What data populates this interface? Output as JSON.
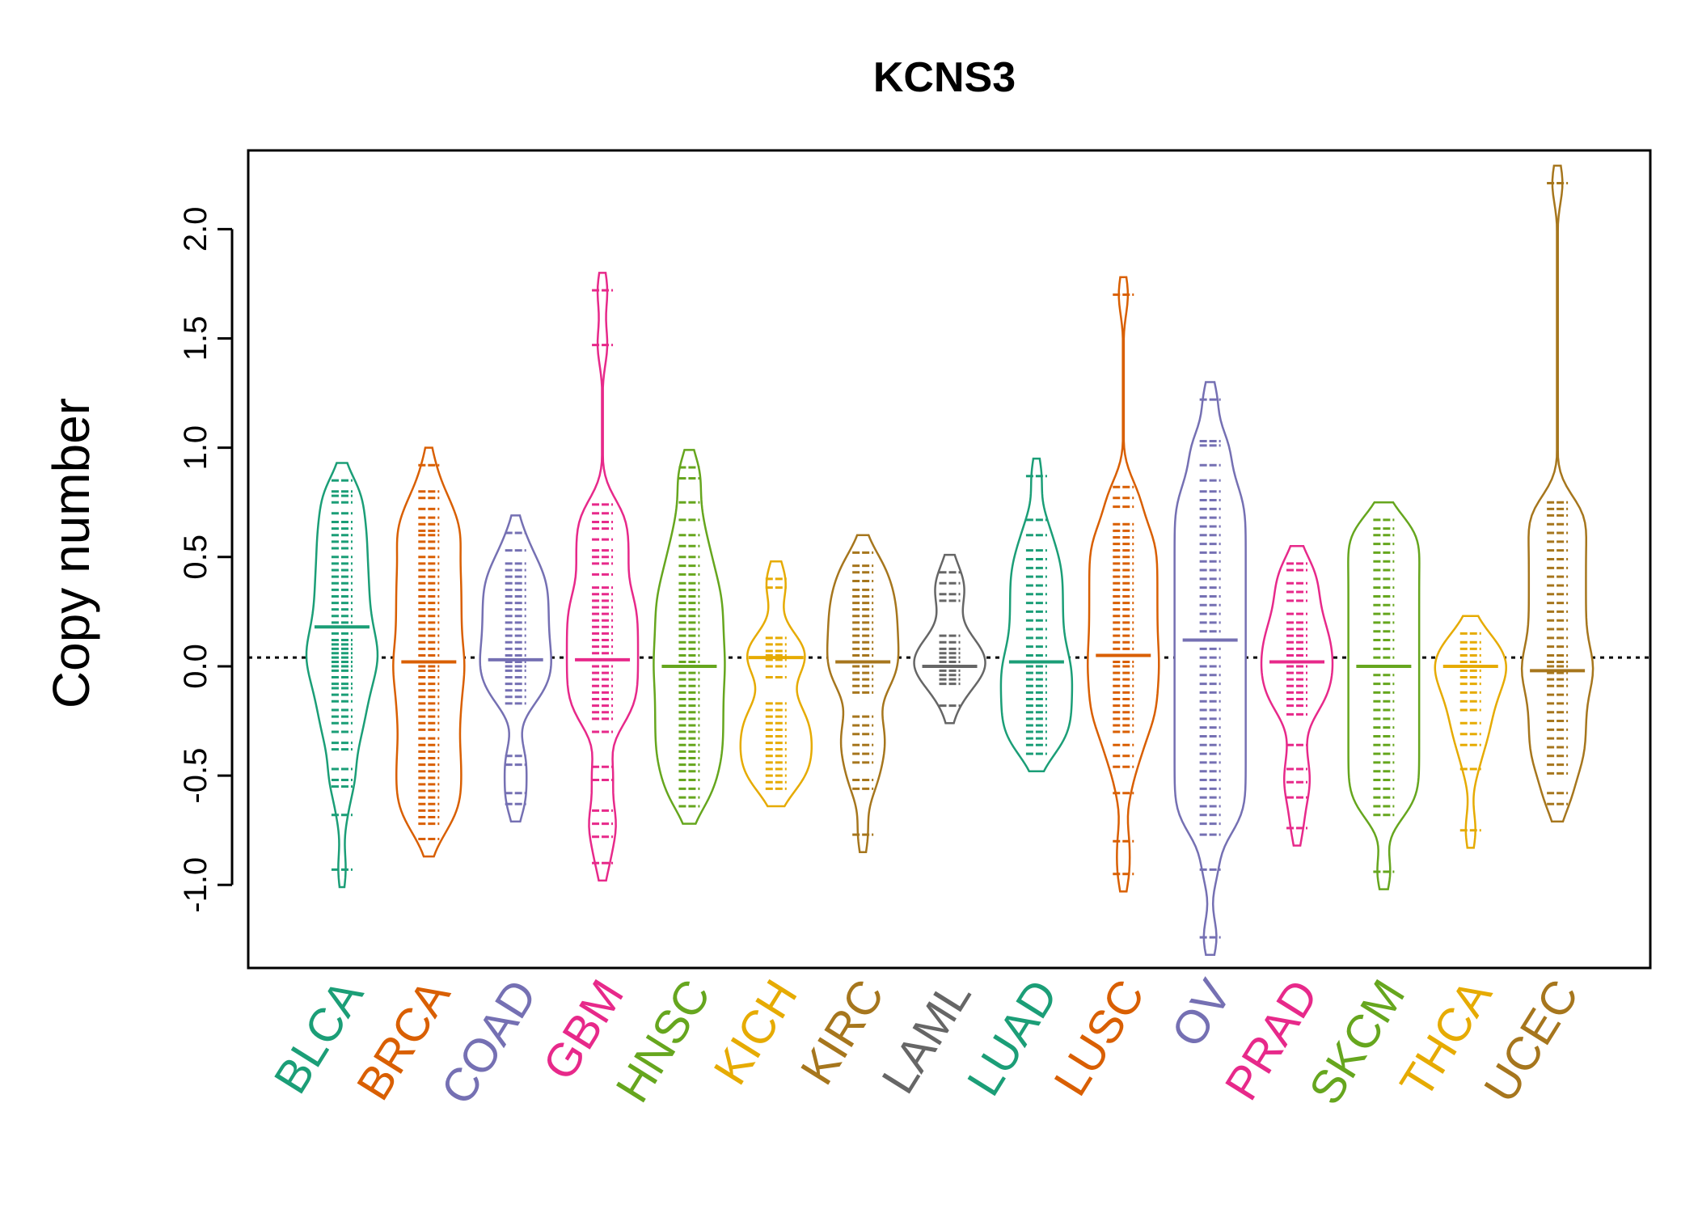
{
  "chart_data": {
    "type": "beanplot",
    "title": "KCNS3",
    "xlabel": "",
    "ylabel": "Copy number",
    "ylim": [
      -1.38,
      2.36
    ],
    "yticks": [
      -1.0,
      -0.5,
      0.0,
      0.5,
      1.0,
      1.5,
      2.0
    ],
    "ytick_labels": [
      "-1.0",
      "-0.5",
      "0.0",
      "0.5",
      "1.0",
      "1.5",
      "2.0"
    ],
    "reference_line": 0.04,
    "categories": [
      "BLCA",
      "BRCA",
      "COAD",
      "GBM",
      "HNSC",
      "KICH",
      "KIRC",
      "LAML",
      "LUAD",
      "LUSC",
      "OV",
      "PRAD",
      "SKCM",
      "THCA",
      "UCEC"
    ],
    "colors": [
      "#1B9E77",
      "#D95F02",
      "#7570B3",
      "#E7298A",
      "#66A61E",
      "#E6AB02",
      "#A6761D",
      "#666666",
      "#1B9E77",
      "#D95F02",
      "#7570B3",
      "#E7298A",
      "#66A61E",
      "#E6AB02",
      "#A6761D"
    ],
    "series": [
      {
        "name": "BLCA",
        "mean": 0.18,
        "min": -0.93,
        "max": 0.85,
        "points": [
          0.85,
          0.8,
          0.78,
          0.75,
          0.7,
          0.66,
          0.63,
          0.6,
          0.57,
          0.54,
          0.5,
          0.47,
          0.44,
          0.41,
          0.38,
          0.35,
          0.32,
          0.29,
          0.26,
          0.23,
          0.2,
          0.18,
          0.15,
          0.12,
          0.1,
          0.08,
          0.06,
          0.04,
          0.02,
          0.0,
          -0.02,
          -0.05,
          -0.08,
          -0.1,
          -0.13,
          -0.16,
          -0.2,
          -0.23,
          -0.26,
          -0.3,
          -0.35,
          -0.38,
          -0.47,
          -0.52,
          -0.55,
          -0.68,
          -0.93
        ]
      },
      {
        "name": "BRCA",
        "mean": 0.02,
        "min": -0.79,
        "max": 0.92,
        "points": [
          0.92,
          0.8,
          0.77,
          0.72,
          0.68,
          0.65,
          0.62,
          0.6,
          0.57,
          0.54,
          0.5,
          0.47,
          0.44,
          0.41,
          0.38,
          0.35,
          0.32,
          0.29,
          0.26,
          0.23,
          0.2,
          0.17,
          0.14,
          0.11,
          0.08,
          0.05,
          0.02,
          0.0,
          -0.02,
          -0.05,
          -0.08,
          -0.11,
          -0.14,
          -0.17,
          -0.2,
          -0.23,
          -0.26,
          -0.29,
          -0.33,
          -0.36,
          -0.39,
          -0.42,
          -0.45,
          -0.48,
          -0.51,
          -0.54,
          -0.57,
          -0.6,
          -0.63,
          -0.66,
          -0.69,
          -0.72,
          -0.79
        ]
      },
      {
        "name": "COAD",
        "mean": 0.03,
        "min": -0.63,
        "max": 0.61,
        "points": [
          0.61,
          0.53,
          0.47,
          0.44,
          0.41,
          0.38,
          0.35,
          0.32,
          0.29,
          0.26,
          0.23,
          0.2,
          0.17,
          0.14,
          0.11,
          0.08,
          0.05,
          0.02,
          0.0,
          -0.02,
          -0.05,
          -0.08,
          -0.11,
          -0.14,
          -0.17,
          -0.41,
          -0.45,
          -0.58,
          -0.63
        ]
      },
      {
        "name": "GBM",
        "mean": 0.03,
        "min": -0.9,
        "max": 1.72,
        "points": [
          1.72,
          1.47,
          0.74,
          0.7,
          0.66,
          0.63,
          0.58,
          0.53,
          0.5,
          0.47,
          0.42,
          0.36,
          0.33,
          0.3,
          0.27,
          0.24,
          0.21,
          0.18,
          0.15,
          0.12,
          0.09,
          0.06,
          0.03,
          0.0,
          -0.03,
          -0.06,
          -0.09,
          -0.12,
          -0.15,
          -0.18,
          -0.21,
          -0.24,
          -0.3,
          -0.46,
          -0.52,
          -0.66,
          -0.72,
          -0.78,
          -0.9
        ]
      },
      {
        "name": "HNSC",
        "mean": 0.0,
        "min": -0.64,
        "max": 0.91,
        "points": [
          0.91,
          0.86,
          0.75,
          0.67,
          0.6,
          0.55,
          0.5,
          0.46,
          0.42,
          0.38,
          0.35,
          0.32,
          0.29,
          0.26,
          0.23,
          0.2,
          0.17,
          0.14,
          0.11,
          0.08,
          0.05,
          0.02,
          0.0,
          -0.03,
          -0.06,
          -0.09,
          -0.12,
          -0.15,
          -0.18,
          -0.21,
          -0.24,
          -0.27,
          -0.3,
          -0.33,
          -0.36,
          -0.39,
          -0.42,
          -0.45,
          -0.48,
          -0.52,
          -0.56,
          -0.6,
          -0.64
        ]
      },
      {
        "name": "KICH",
        "mean": 0.04,
        "min": -0.56,
        "max": 0.4,
        "points": [
          0.4,
          0.36,
          0.13,
          0.1,
          0.07,
          0.05,
          0.03,
          0.0,
          -0.05,
          -0.17,
          -0.2,
          -0.23,
          -0.26,
          -0.29,
          -0.32,
          -0.35,
          -0.38,
          -0.41,
          -0.44,
          -0.47,
          -0.5,
          -0.53,
          -0.56
        ]
      },
      {
        "name": "KIRC",
        "mean": 0.02,
        "min": -0.77,
        "max": 0.52,
        "points": [
          0.52,
          0.46,
          0.43,
          0.39,
          0.35,
          0.32,
          0.29,
          0.26,
          0.23,
          0.2,
          0.17,
          0.14,
          0.11,
          0.08,
          0.05,
          0.02,
          0.0,
          -0.03,
          -0.06,
          -0.09,
          -0.12,
          -0.23,
          -0.27,
          -0.31,
          -0.36,
          -0.4,
          -0.44,
          -0.52,
          -0.56,
          -0.77
        ]
      },
      {
        "name": "LAML",
        "mean": 0.0,
        "min": -0.18,
        "max": 0.43,
        "points": [
          0.43,
          0.38,
          0.33,
          0.3,
          0.14,
          0.11,
          0.08,
          0.06,
          0.04,
          0.02,
          0.0,
          -0.02,
          -0.04,
          -0.06,
          -0.08,
          -0.18
        ]
      },
      {
        "name": "LUAD",
        "mean": 0.02,
        "min": -0.4,
        "max": 0.87,
        "points": [
          0.87,
          0.67,
          0.6,
          0.53,
          0.49,
          0.45,
          0.41,
          0.37,
          0.33,
          0.29,
          0.25,
          0.21,
          0.17,
          0.13,
          0.09,
          0.05,
          0.02,
          0.0,
          -0.03,
          -0.06,
          -0.09,
          -0.12,
          -0.15,
          -0.18,
          -0.21,
          -0.24,
          -0.27,
          -0.3,
          -0.33,
          -0.36,
          -0.4
        ]
      },
      {
        "name": "LUSC",
        "mean": 0.05,
        "min": -0.95,
        "max": 1.7,
        "points": [
          1.7,
          0.82,
          0.77,
          0.73,
          0.65,
          0.62,
          0.59,
          0.56,
          0.53,
          0.5,
          0.47,
          0.44,
          0.41,
          0.38,
          0.35,
          0.32,
          0.29,
          0.26,
          0.23,
          0.2,
          0.17,
          0.14,
          0.11,
          0.08,
          0.05,
          0.02,
          0.0,
          -0.03,
          -0.06,
          -0.09,
          -0.12,
          -0.15,
          -0.18,
          -0.21,
          -0.24,
          -0.27,
          -0.3,
          -0.36,
          -0.41,
          -0.46,
          -0.58,
          -0.8,
          -0.95
        ]
      },
      {
        "name": "OV",
        "mean": 0.12,
        "min": -1.24,
        "max": 1.22,
        "points": [
          1.22,
          1.03,
          1.01,
          0.92,
          0.85,
          0.8,
          0.76,
          0.72,
          0.68,
          0.64,
          0.6,
          0.56,
          0.52,
          0.48,
          0.44,
          0.4,
          0.36,
          0.32,
          0.28,
          0.24,
          0.2,
          0.16,
          0.12,
          0.08,
          0.04,
          0.0,
          -0.04,
          -0.08,
          -0.12,
          -0.16,
          -0.2,
          -0.24,
          -0.28,
          -0.32,
          -0.36,
          -0.4,
          -0.44,
          -0.48,
          -0.52,
          -0.56,
          -0.6,
          -0.64,
          -0.68,
          -0.72,
          -0.77,
          -0.93,
          -1.24
        ]
      },
      {
        "name": "PRAD",
        "mean": 0.02,
        "min": -0.74,
        "max": 0.47,
        "points": [
          0.47,
          0.44,
          0.38,
          0.34,
          0.3,
          0.24,
          0.2,
          0.17,
          0.14,
          0.11,
          0.08,
          0.05,
          0.02,
          0.0,
          -0.03,
          -0.06,
          -0.09,
          -0.12,
          -0.15,
          -0.18,
          -0.22,
          -0.36,
          -0.47,
          -0.53,
          -0.6,
          -0.74
        ]
      },
      {
        "name": "SKCM",
        "mean": 0.0,
        "min": -0.94,
        "max": 0.67,
        "points": [
          0.67,
          0.63,
          0.6,
          0.56,
          0.52,
          0.48,
          0.44,
          0.4,
          0.36,
          0.32,
          0.28,
          0.24,
          0.2,
          0.16,
          0.12,
          0.08,
          0.04,
          0.0,
          -0.04,
          -0.08,
          -0.12,
          -0.16,
          -0.2,
          -0.24,
          -0.28,
          -0.32,
          -0.36,
          -0.4,
          -0.44,
          -0.48,
          -0.52,
          -0.56,
          -0.6,
          -0.64,
          -0.68,
          -0.94
        ]
      },
      {
        "name": "THCA",
        "mean": 0.0,
        "min": -0.75,
        "max": 0.15,
        "points": [
          0.15,
          0.11,
          0.08,
          0.05,
          0.02,
          0.0,
          -0.02,
          -0.05,
          -0.08,
          -0.12,
          -0.16,
          -0.2,
          -0.26,
          -0.31,
          -0.36,
          -0.47,
          -0.75
        ]
      },
      {
        "name": "UCEC",
        "mean": -0.02,
        "min": -0.63,
        "max": 2.21,
        "points": [
          2.21,
          0.75,
          0.72,
          0.69,
          0.65,
          0.61,
          0.57,
          0.53,
          0.49,
          0.45,
          0.41,
          0.37,
          0.33,
          0.29,
          0.25,
          0.21,
          0.17,
          0.13,
          0.09,
          0.05,
          0.02,
          0.0,
          -0.03,
          -0.06,
          -0.09,
          -0.13,
          -0.17,
          -0.21,
          -0.25,
          -0.29,
          -0.33,
          -0.37,
          -0.41,
          -0.45,
          -0.49,
          -0.58,
          -0.63
        ]
      }
    ]
  }
}
